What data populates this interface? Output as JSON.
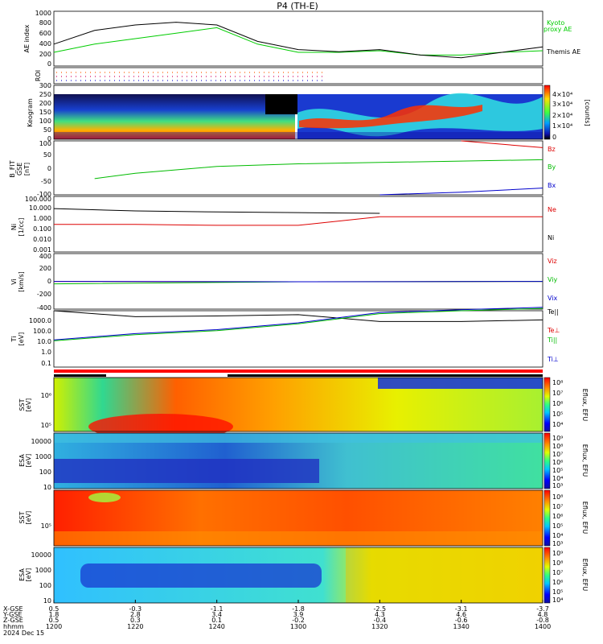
{
  "title": "P4 (TH-E)",
  "colors": {
    "kyoto": "#00cc00",
    "themis": "#000000",
    "red": "#dd0000",
    "green": "#00bb00",
    "blue": "#0000cc"
  },
  "panels": {
    "ae": {
      "ylabel": "AE index",
      "ticks": [
        "1000",
        "800",
        "600",
        "400",
        "200",
        "0"
      ],
      "legend": [
        "Kyoto",
        "proxy AE",
        "Themis AE"
      ]
    },
    "roi": {
      "ylabel": "ROI"
    },
    "keogram": {
      "ylabel": "Keogram",
      "ticks": [
        "300",
        "250",
        "200",
        "150",
        "100",
        "50",
        "0"
      ],
      "cbar_ticks": [
        "4×10⁴",
        "3×10⁴",
        "2×10⁴",
        "1×10⁴",
        "0"
      ],
      "cbar_label": "[counts]"
    },
    "bfield": {
      "ylabel_lines": [
        "B_FIT",
        "GSE",
        "[nT]"
      ],
      "ticks": [
        "100",
        "50",
        "0",
        "-50",
        "-100"
      ],
      "legend": [
        "Bz",
        "By",
        "Bx"
      ]
    },
    "density": {
      "ylabel_lines": [
        "Ni",
        "[1/cc]"
      ],
      "ticks": [
        "100.000",
        "10.000",
        "1.000",
        "0.100",
        "0.010",
        "0.001"
      ],
      "legend": [
        "Ne",
        "Ni"
      ]
    },
    "velocity": {
      "ylabel_lines": [
        "Vi",
        "[km/s]"
      ],
      "ticks": [
        "400",
        "200",
        "0",
        "-200",
        "-400"
      ],
      "legend": [
        "Viz",
        "Viy",
        "Vix"
      ]
    },
    "temp": {
      "ylabel_lines": [
        "Ti",
        "[eV]"
      ],
      "ticks": [
        "1000.0",
        "100.0",
        "10.0",
        "1.0",
        "0.1"
      ],
      "legend": [
        "Te||",
        "Te⊥",
        "Ti||",
        "Ti⊥"
      ]
    },
    "sst_e": {
      "ylabel_lines": [
        "SST",
        "[eV]"
      ],
      "ticks": [
        "10⁶",
        "10⁵"
      ],
      "cbar_ticks": [
        "10⁸",
        "10⁷",
        "10⁶",
        "10⁵",
        "10⁴",
        "10³"
      ],
      "cbar_label": "Eflux, EFU"
    },
    "esa_e": {
      "ylabel_lines": [
        "ESA",
        "[eV]"
      ],
      "ticks": [
        "10000",
        "1000",
        "100",
        "10"
      ],
      "cbar_ticks": [
        "10⁹",
        "10⁸",
        "10⁷",
        "10⁶",
        "10⁵",
        "10⁴",
        "10³"
      ],
      "cbar_label": "Eflux, EFU"
    },
    "sst_i": {
      "ylabel_lines": [
        "SST",
        "[eV]"
      ],
      "ticks": [
        "10⁵"
      ],
      "cbar_ticks": [
        "10⁸",
        "10⁷",
        "10⁶",
        "10⁵",
        "10⁴",
        "10³"
      ],
      "cbar_label": "Eflux, EFU"
    },
    "esa_i": {
      "ylabel_lines": [
        "ESA",
        "[eV]"
      ],
      "ticks": [
        "10000",
        "1000",
        "100",
        "10"
      ],
      "cbar_ticks": [
        "10⁹",
        "10⁸",
        "10⁷",
        "10⁶",
        "10⁵",
        "10⁴"
      ],
      "cbar_label": "Eflux, EFU"
    }
  },
  "footer": {
    "row_labels": [
      "X-GSE",
      "Y-GSE",
      "Z-GSE",
      "hhmm",
      "2024 Dec 15"
    ],
    "columns": [
      [
        "0.5",
        "1.8",
        "0.5",
        "1200"
      ],
      [
        "-0.3",
        "2.8",
        "0.3",
        "1220"
      ],
      [
        "-1.1",
        "3.4",
        "0.1",
        "1240"
      ],
      [
        "-1.8",
        "3.9",
        "-0.2",
        "1300"
      ],
      [
        "-2.5",
        "4.3",
        "-0.4",
        "1320"
      ],
      [
        "-3.1",
        "4.6",
        "-0.6",
        "1340"
      ],
      [
        "-3.7",
        "4.8",
        "-0.8",
        "1400"
      ]
    ]
  },
  "chart_data": [
    {
      "type": "line",
      "title": "AE index",
      "x": [
        1200,
        1210,
        1220,
        1230,
        1240,
        1250,
        1300,
        1310,
        1320,
        1330,
        1340,
        1350,
        1400
      ],
      "series": [
        {
          "name": "Themis AE",
          "values": [
            400,
            650,
            750,
            800,
            750,
            450,
            300,
            260,
            300,
            200,
            150,
            250,
            350
          ]
        },
        {
          "name": "Kyoto proxy AE",
          "values": [
            250,
            400,
            500,
            600,
            700,
            400,
            250,
            250,
            280,
            200,
            200,
            250,
            280
          ]
        }
      ]
    },
    {
      "type": "line",
      "title": "B_FIT GSE",
      "x": [
        1210,
        1220,
        1240,
        1300,
        1320,
        1340,
        1400
      ],
      "series": [
        {
          "name": "Bz",
          "values": [
            null,
            null,
            null,
            null,
            null,
            120,
            75
          ]
        },
        {
          "name": "By",
          "values": [
            -40,
            -20,
            5,
            15,
            20,
            25,
            30
          ]
        },
        {
          "name": "Bx",
          "values": [
            null,
            null,
            null,
            null,
            -110,
            -90,
            -75
          ]
        }
      ]
    },
    {
      "type": "line",
      "title": "Ni",
      "x": [
        1200,
        1220,
        1240,
        1300,
        1320,
        1340,
        1400
      ],
      "series": [
        {
          "name": "Ni",
          "values": [
            8,
            5,
            4,
            3.5,
            3,
            null,
            null
          ]
        },
        {
          "name": "Ne",
          "values": [
            0.3,
            0.3,
            0.25,
            0.25,
            1.5,
            1.5,
            1.5
          ]
        }
      ]
    },
    {
      "type": "line",
      "title": "Ti",
      "x": [
        1200,
        1220,
        1240,
        1300,
        1320,
        1340,
        1400
      ],
      "series": [
        {
          "name": "Te||",
          "values": [
            2000,
            700,
            800,
            1000,
            300,
            300,
            400
          ]
        },
        {
          "name": "Ti||",
          "values": [
            10,
            30,
            60,
            200,
            1200,
            2000,
            3000
          ]
        }
      ]
    }
  ]
}
